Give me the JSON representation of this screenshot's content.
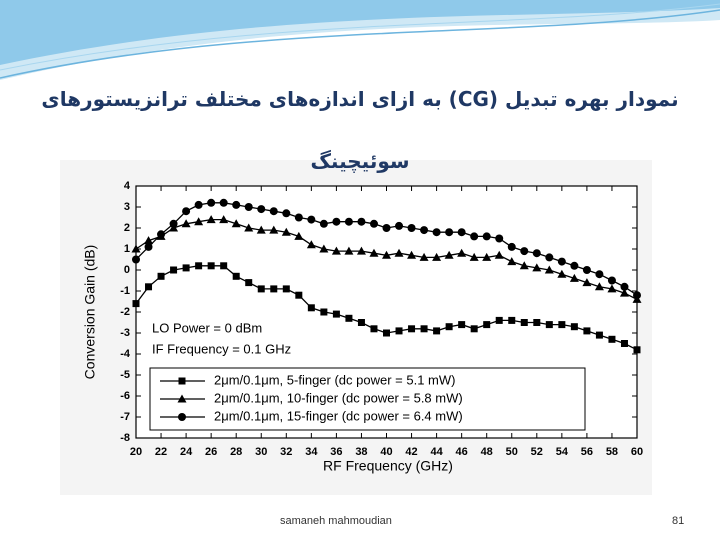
{
  "slide": {
    "title": "نمودار بهره تبدیل (CG) به ازای اندازه‌های مختلف ترانزیستورهای سوئیچینگ",
    "footer": "samaneh mahmoudian",
    "page_number": "81"
  },
  "chart_data": {
    "type": "line",
    "xlabel": "RF Frequency (GHz)",
    "ylabel": "Conversion Gain (dB)",
    "annotations": [
      "LO Power = 0 dBm",
      "IF Frequency = 0.1 GHz"
    ],
    "x": [
      20,
      21,
      22,
      23,
      24,
      25,
      26,
      27,
      28,
      29,
      30,
      31,
      32,
      33,
      34,
      35,
      36,
      37,
      38,
      39,
      40,
      41,
      42,
      43,
      44,
      45,
      46,
      47,
      48,
      49,
      50,
      51,
      52,
      53,
      54,
      55,
      56,
      57,
      58,
      59,
      60
    ],
    "series": [
      {
        "name": "2μm/0.1μm, 5-finger (dc power = 5.1 mW)",
        "color": "#000000",
        "marker": "square",
        "values": [
          -1.6,
          -0.8,
          -0.3,
          0,
          0.1,
          0.2,
          0.2,
          0.2,
          -0.3,
          -0.6,
          -0.9,
          -0.9,
          -0.9,
          -1.2,
          -1.8,
          -2.0,
          -2.1,
          -2.3,
          -2.5,
          -2.8,
          -3.0,
          -2.9,
          -2.8,
          -2.8,
          -2.9,
          -2.7,
          -2.6,
          -2.8,
          -2.6,
          -2.4,
          -2.4,
          -2.5,
          -2.5,
          -2.6,
          -2.6,
          -2.7,
          -2.9,
          -3.1,
          -3.3,
          -3.5,
          -3.8
        ]
      },
      {
        "name": "2μm/0.1μm, 10-finger (dc power = 5.8 mW)",
        "color": "#000000",
        "marker": "triangle",
        "values": [
          1.0,
          1.4,
          1.6,
          2.0,
          2.2,
          2.3,
          2.4,
          2.4,
          2.2,
          2.0,
          1.9,
          1.9,
          1.8,
          1.6,
          1.2,
          1.0,
          0.9,
          0.9,
          0.9,
          0.8,
          0.7,
          0.8,
          0.7,
          0.6,
          0.6,
          0.7,
          0.8,
          0.6,
          0.6,
          0.7,
          0.4,
          0.2,
          0.1,
          0.0,
          -0.2,
          -0.4,
          -0.6,
          -0.8,
          -0.9,
          -1.1,
          -1.4
        ]
      },
      {
        "name": "2μm/0.1μm, 15-finger (dc power = 6.4 mW)",
        "color": "#000000",
        "marker": "circle",
        "values": [
          0.5,
          1.1,
          1.7,
          2.2,
          2.8,
          3.1,
          3.2,
          3.2,
          3.1,
          3.0,
          2.9,
          2.8,
          2.7,
          2.5,
          2.4,
          2.2,
          2.3,
          2.3,
          2.3,
          2.2,
          2.0,
          2.1,
          2.0,
          1.9,
          1.8,
          1.8,
          1.8,
          1.6,
          1.6,
          1.5,
          1.1,
          0.9,
          0.8,
          0.6,
          0.4,
          0.2,
          0.0,
          -0.2,
          -0.5,
          -0.8,
          -1.2
        ]
      }
    ],
    "xlim": [
      20,
      60
    ],
    "xticks": [
      20,
      22,
      24,
      26,
      28,
      30,
      32,
      34,
      36,
      38,
      40,
      42,
      44,
      46,
      48,
      50,
      52,
      54,
      56,
      58,
      60
    ],
    "ylim": [
      -8,
      4
    ],
    "yticks": [
      -8,
      -7,
      -6,
      -5,
      -4,
      -3,
      -2,
      -1,
      0,
      1,
      2,
      3,
      4
    ]
  }
}
